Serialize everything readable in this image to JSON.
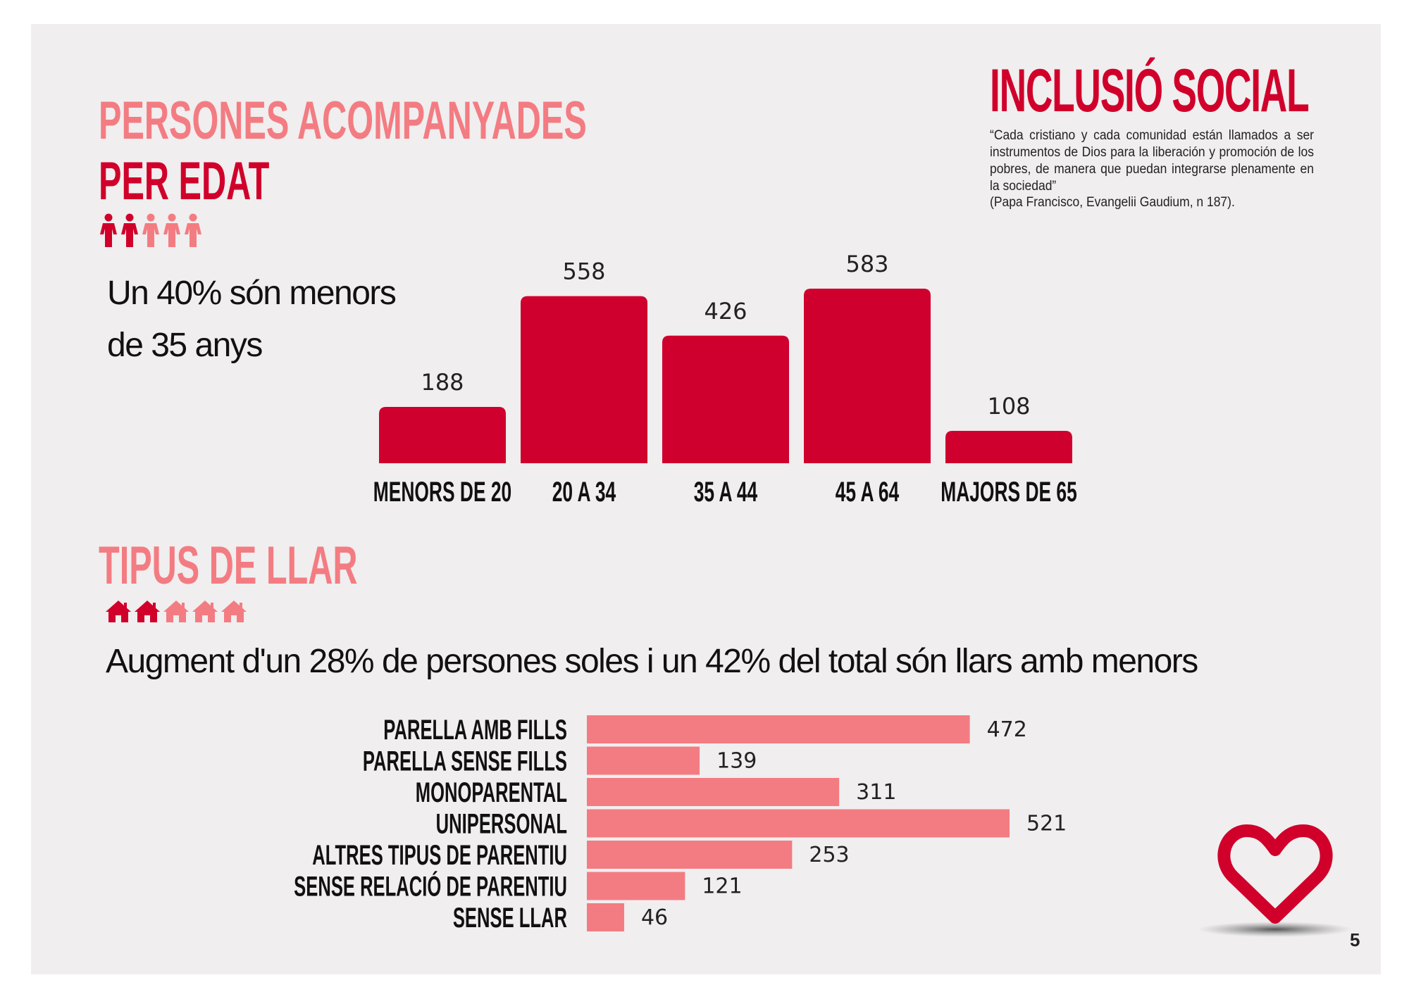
{
  "header": {
    "title": "INCLUSIÓ SOCIAL",
    "quote": "“Cada cristiano y cada comunidad están llamados a ser instrumentos de Dios para la liberación y promoción de los pobres, de manera que puedan integrarse plenamente en la sociedad”",
    "quote_ref": "(Papa Francisco, Evangelii Gaudium, n 187)."
  },
  "age_section": {
    "title_line1": "PERSONES ACOMPANYADES",
    "title_line2": "PER  EDAT",
    "caption": "Un 40% són menors de 35 anys",
    "icon": "people-icon",
    "icons_total": 5,
    "icons_highlighted": 2
  },
  "household_section": {
    "title": "TIPUS DE LLAR",
    "caption": "Augment d'un 28% de persones soles i un 42% del total són llars amb menors",
    "icon": "house-icon",
    "icons_total": 5,
    "icons_highlighted": 2
  },
  "colors": {
    "accent_dark": "#d0002b",
    "accent_light": "#f37c82",
    "bar_dark": "#cf002d",
    "bar_light": "#f37c82",
    "panel_bg": "#f0eeef"
  },
  "page_number": "5",
  "chart_data": [
    {
      "type": "bar",
      "orientation": "vertical",
      "categories": [
        "MENORS DE 20",
        "20 A 34",
        "35 A 44",
        "45 A 64",
        "MAJORS DE 65"
      ],
      "values": [
        188,
        558,
        426,
        583,
        108
      ],
      "ylim": [
        0,
        583
      ],
      "grid": false,
      "data_labels": true
    },
    {
      "type": "bar",
      "orientation": "horizontal",
      "categories": [
        "PARELLA AMB FILLS",
        "PARELLA SENSE FILLS",
        "MONOPARENTAL",
        "UNIPERSONAL",
        "ALTRES TIPUS DE PARENTIU",
        "SENSE RELACIÓ DE PARENTIU",
        "SENSE LLAR"
      ],
      "values": [
        472,
        139,
        311,
        521,
        253,
        121,
        46
      ],
      "xlim": [
        0,
        521
      ],
      "grid": false,
      "data_labels": true
    }
  ]
}
